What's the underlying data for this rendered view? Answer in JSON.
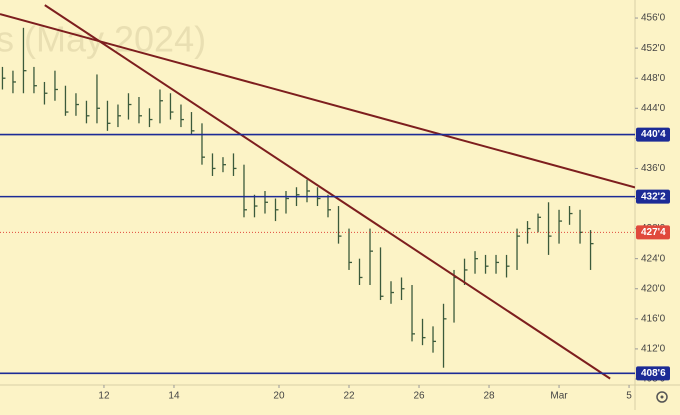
{
  "chart_data": {
    "type": "ohlc",
    "watermark": "s (May 2024)",
    "x": [
      -2.9,
      -2.6,
      -2.3,
      -2.0,
      -1.7,
      -1.4,
      -1.1,
      -0.8,
      -0.5,
      -0.2,
      0.1,
      0.4,
      0.7,
      1.0,
      1.3,
      1.6,
      1.9,
      2.2,
      2.5,
      2.8,
      3.1,
      3.4,
      3.7,
      4.0,
      4.3,
      4.6,
      4.9,
      5.2,
      5.5,
      5.8,
      6.1,
      6.4,
      6.7,
      7.0,
      7.3,
      7.6,
      7.9,
      8.2,
      8.5,
      8.8,
      9.1,
      9.4,
      9.7,
      10.0,
      10.3,
      10.6,
      10.9,
      11.2,
      11.5,
      11.8,
      12.1,
      12.4,
      12.7,
      13.0,
      13.3,
      13.6,
      13.9
    ],
    "high": [
      449.5,
      449,
      454.7,
      449.5,
      447.5,
      449,
      447,
      446,
      445,
      448.5,
      445,
      444.5,
      446,
      445.5,
      444,
      446.5,
      446,
      444.5,
      443.5,
      442,
      438,
      437.5,
      438,
      436.5,
      432.5,
      433,
      432,
      433,
      433.5,
      434.5,
      433.5,
      432.5,
      431,
      428,
      424,
      428,
      425.5,
      421,
      421.5,
      420.5,
      416,
      415,
      418,
      422.5,
      424,
      425,
      424.5,
      424.5,
      424.5,
      428,
      429,
      430,
      431.5,
      430.5,
      431,
      430.5,
      427.8
    ],
    "low": [
      446.5,
      446,
      446,
      446,
      444.5,
      445,
      443,
      443,
      442,
      442,
      441,
      441.5,
      442.5,
      442,
      441.5,
      442,
      442.5,
      441.5,
      440.5,
      436.5,
      435,
      435.5,
      435,
      429.5,
      429.5,
      430,
      429,
      430,
      431,
      431.5,
      431,
      429.5,
      426,
      422.5,
      420.5,
      420.5,
      418.5,
      418,
      418.5,
      413,
      412.5,
      411.5,
      409.5,
      415.5,
      420.5,
      422,
      422,
      422,
      421.5,
      422.5,
      426,
      427.5,
      424.5,
      426,
      428.5,
      426,
      422.5
    ],
    "close": [
      448,
      447.5,
      449,
      447,
      446,
      446.5,
      443.5,
      444.5,
      443,
      444,
      442,
      443,
      444.5,
      443,
      442.5,
      445,
      443.5,
      442.5,
      441,
      437.5,
      436,
      436.5,
      436,
      430.5,
      431,
      431.5,
      430.5,
      432,
      432.5,
      433,
      432,
      430.5,
      427,
      423.5,
      421.5,
      425,
      419,
      419.5,
      420,
      414,
      413.5,
      413,
      416,
      421.5,
      422.5,
      424,
      423,
      423.5,
      423,
      427,
      428,
      429.5,
      427,
      429,
      430,
      427.5,
      426
    ],
    "color": "#3b5a3b",
    "xlim": [
      -2.97,
      15.17
    ],
    "xticks": [
      {
        "value": 0,
        "label": "12"
      },
      {
        "value": 2,
        "label": "14"
      },
      {
        "value": 5,
        "label": "20"
      },
      {
        "value": 7,
        "label": "22"
      },
      {
        "value": 9,
        "label": "26"
      },
      {
        "value": 11,
        "label": "28"
      },
      {
        "value": 13,
        "label": "Mar"
      },
      {
        "value": 15,
        "label": "5"
      }
    ],
    "ylim": [
      407.2,
      458.4
    ],
    "yticks": [
      {
        "value": 456,
        "label": "456'0"
      },
      {
        "value": 452,
        "label": "452'0"
      },
      {
        "value": 448,
        "label": "448'0"
      },
      {
        "value": 444,
        "label": "444'0"
      },
      {
        "value": 440,
        "label": "440'0"
      },
      {
        "value": 436,
        "label": "436'0"
      },
      {
        "value": 432,
        "label": "432'0"
      },
      {
        "value": 428,
        "label": "428'0"
      },
      {
        "value": 424,
        "label": "424'0"
      },
      {
        "value": 420,
        "label": "420'0"
      },
      {
        "value": 416,
        "label": "416'0"
      },
      {
        "value": 412,
        "label": "412'0"
      },
      {
        "value": 408,
        "label": "408'0"
      }
    ],
    "levels": [
      {
        "value": 440.5,
        "label": "440'4"
      },
      {
        "value": 432.25,
        "label": "432'2"
      },
      {
        "value": 408.75,
        "label": "408'6"
      }
    ],
    "level_color": "#1c2b96",
    "last": {
      "value": 427.5,
      "label": "427'4"
    },
    "last_color": "#e0493c",
    "trendlines": [
      {
        "x": [
          -2.97,
          15.17
        ],
        "y": [
          456.53,
          433.48
        ]
      },
      {
        "x": [
          -1.69,
          14.46
        ],
        "y": [
          457.72,
          408.05
        ]
      }
    ],
    "trend_color": "#7d1e1e"
  }
}
